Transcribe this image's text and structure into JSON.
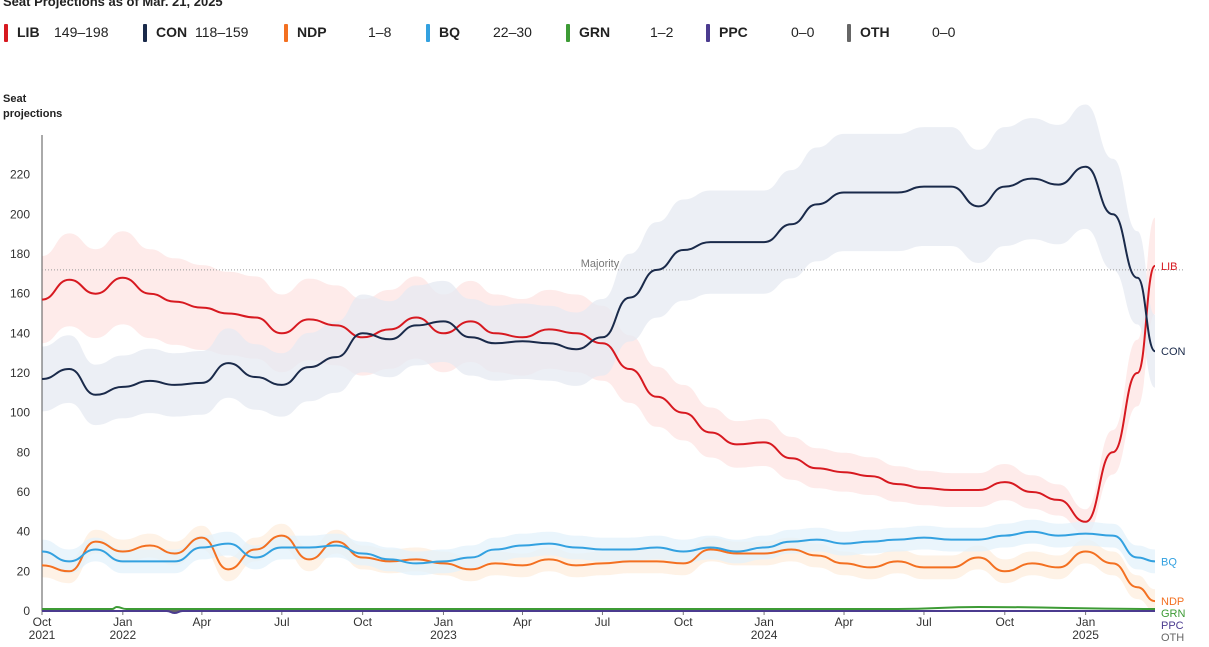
{
  "title": "Seat Projections as of Mar. 21, 2025",
  "legend": [
    {
      "code": "LIB",
      "range": "149–198",
      "color": "#d71920"
    },
    {
      "code": "CON",
      "range": "118–159",
      "color": "#1a2a4a"
    },
    {
      "code": "NDP",
      "range": "1–8",
      "color": "#f37021"
    },
    {
      "code": "BQ",
      "range": "22–30",
      "color": "#33a1e0"
    },
    {
      "code": "GRN",
      "range": "1–2",
      "color": "#3d9b35"
    },
    {
      "code": "PPC",
      "range": "0–0",
      "color": "#4b3b8f"
    },
    {
      "code": "OTH",
      "range": "0–0",
      "color": "#666666"
    }
  ],
  "chart_data": {
    "type": "line",
    "ylabel": "Seat projections",
    "ylim": [
      0,
      240
    ],
    "yticks": [
      0,
      20,
      40,
      60,
      80,
      100,
      120,
      140,
      160,
      180,
      200,
      220
    ],
    "xlim": [
      "2021-10-01",
      "2025-03-21"
    ],
    "xticks": [
      {
        "date": "2021-10-01",
        "label": "Oct",
        "year": "2021"
      },
      {
        "date": "2022-01-01",
        "label": "Jan",
        "year": "2022"
      },
      {
        "date": "2022-04-01",
        "label": "Apr",
        "year": ""
      },
      {
        "date": "2022-07-01",
        "label": "Jul",
        "year": ""
      },
      {
        "date": "2022-10-01",
        "label": "Oct",
        "year": ""
      },
      {
        "date": "2023-01-01",
        "label": "Jan",
        "year": "2023"
      },
      {
        "date": "2023-04-01",
        "label": "Apr",
        "year": ""
      },
      {
        "date": "2023-07-01",
        "label": "Jul",
        "year": ""
      },
      {
        "date": "2023-10-01",
        "label": "Oct",
        "year": ""
      },
      {
        "date": "2024-01-01",
        "label": "Jan",
        "year": "2024"
      },
      {
        "date": "2024-04-01",
        "label": "Apr",
        "year": ""
      },
      {
        "date": "2024-07-01",
        "label": "Jul",
        "year": ""
      },
      {
        "date": "2024-10-01",
        "label": "Oct",
        "year": ""
      },
      {
        "date": "2025-01-01",
        "label": "Jan",
        "year": "2025"
      }
    ],
    "majority": {
      "label": "Majority",
      "value": 172
    },
    "series": [
      {
        "name": "LIB",
        "color": "#d71920",
        "band_color": "#fde4e3",
        "x": [
          "2021-10-01",
          "2021-11-01",
          "2021-12-01",
          "2022-01-01",
          "2022-02-01",
          "2022-03-01",
          "2022-04-01",
          "2022-05-01",
          "2022-06-01",
          "2022-07-01",
          "2022-08-01",
          "2022-09-01",
          "2022-10-01",
          "2022-11-01",
          "2022-12-01",
          "2023-01-01",
          "2023-02-01",
          "2023-03-01",
          "2023-04-01",
          "2023-05-01",
          "2023-06-01",
          "2023-07-01",
          "2023-08-01",
          "2023-09-01",
          "2023-10-01",
          "2023-11-01",
          "2023-12-01",
          "2024-01-01",
          "2024-02-01",
          "2024-03-01",
          "2024-04-01",
          "2024-05-01",
          "2024-06-01",
          "2024-07-01",
          "2024-08-01",
          "2024-09-01",
          "2024-10-01",
          "2024-11-01",
          "2024-12-01",
          "2025-01-01",
          "2025-02-01",
          "2025-03-01",
          "2025-03-21"
        ],
        "values": [
          157,
          167,
          160,
          168,
          160,
          156,
          153,
          150,
          148,
          140,
          147,
          144,
          138,
          142,
          148,
          140,
          146,
          140,
          138,
          142,
          140,
          135,
          122,
          108,
          100,
          90,
          84,
          85,
          77,
          72,
          70,
          68,
          64,
          62,
          61,
          61,
          65,
          60,
          56,
          45,
          80,
          120,
          174
        ]
      },
      {
        "name": "CON",
        "color": "#1a2a4a",
        "band_color": "#e6eaf2",
        "x": [
          "2021-10-01",
          "2021-11-01",
          "2021-12-01",
          "2022-01-01",
          "2022-02-01",
          "2022-03-01",
          "2022-04-01",
          "2022-05-01",
          "2022-06-01",
          "2022-07-01",
          "2022-08-01",
          "2022-09-01",
          "2022-10-01",
          "2022-11-01",
          "2022-12-01",
          "2023-01-01",
          "2023-02-01",
          "2023-03-01",
          "2023-04-01",
          "2023-05-01",
          "2023-06-01",
          "2023-07-01",
          "2023-08-01",
          "2023-09-01",
          "2023-10-01",
          "2023-11-01",
          "2023-12-01",
          "2024-01-01",
          "2024-02-01",
          "2024-03-01",
          "2024-04-01",
          "2024-05-01",
          "2024-06-01",
          "2024-07-01",
          "2024-08-01",
          "2024-09-01",
          "2024-10-01",
          "2024-11-01",
          "2024-12-01",
          "2025-01-01",
          "2025-02-01",
          "2025-03-01",
          "2025-03-21"
        ],
        "values": [
          117,
          122,
          109,
          113,
          116,
          114,
          115,
          125,
          118,
          114,
          123,
          128,
          140,
          137,
          144,
          146,
          138,
          135,
          136,
          135,
          132,
          138,
          158,
          172,
          182,
          186,
          186,
          186,
          195,
          205,
          211,
          211,
          211,
          214,
          214,
          204,
          214,
          218,
          215,
          224,
          200,
          168,
          131
        ]
      },
      {
        "name": "NDP",
        "color": "#f37021",
        "band_color": "#fdeedd",
        "x": [
          "2021-10-01",
          "2021-11-01",
          "2021-12-01",
          "2022-01-01",
          "2022-02-01",
          "2022-03-01",
          "2022-04-01",
          "2022-05-01",
          "2022-06-01",
          "2022-07-01",
          "2022-08-01",
          "2022-09-01",
          "2022-10-01",
          "2022-11-01",
          "2022-12-01",
          "2023-01-01",
          "2023-02-01",
          "2023-03-01",
          "2023-04-01",
          "2023-05-01",
          "2023-06-01",
          "2023-07-01",
          "2023-08-01",
          "2023-09-01",
          "2023-10-01",
          "2023-11-01",
          "2023-12-01",
          "2024-01-01",
          "2024-02-01",
          "2024-03-01",
          "2024-04-01",
          "2024-05-01",
          "2024-06-01",
          "2024-07-01",
          "2024-08-01",
          "2024-09-01",
          "2024-10-01",
          "2024-11-01",
          "2024-12-01",
          "2025-01-01",
          "2025-02-01",
          "2025-03-01",
          "2025-03-21"
        ],
        "values": [
          23,
          20,
          35,
          30,
          33,
          29,
          37,
          21,
          31,
          38,
          26,
          35,
          27,
          25,
          26,
          24,
          21,
          24,
          23,
          26,
          23,
          24,
          25,
          25,
          24,
          31,
          29,
          29,
          31,
          28,
          24,
          22,
          25,
          22,
          22,
          27,
          20,
          24,
          22,
          30,
          24,
          12,
          5
        ]
      },
      {
        "name": "BQ",
        "color": "#33a1e0",
        "band_color": "#e3f1fb",
        "x": [
          "2021-10-01",
          "2021-11-01",
          "2021-12-01",
          "2022-01-01",
          "2022-02-01",
          "2022-03-01",
          "2022-04-01",
          "2022-05-01",
          "2022-06-01",
          "2022-07-01",
          "2022-08-01",
          "2022-09-01",
          "2022-10-01",
          "2022-11-01",
          "2022-12-01",
          "2023-01-01",
          "2023-02-01",
          "2023-03-01",
          "2023-04-01",
          "2023-05-01",
          "2023-06-01",
          "2023-07-01",
          "2023-08-01",
          "2023-09-01",
          "2023-10-01",
          "2023-11-01",
          "2023-12-01",
          "2024-01-01",
          "2024-02-01",
          "2024-03-01",
          "2024-04-01",
          "2024-05-01",
          "2024-06-01",
          "2024-07-01",
          "2024-08-01",
          "2024-09-01",
          "2024-10-01",
          "2024-11-01",
          "2024-12-01",
          "2025-01-01",
          "2025-02-01",
          "2025-03-01",
          "2025-03-21"
        ],
        "values": [
          30,
          25,
          31,
          25,
          25,
          25,
          32,
          34,
          27,
          32,
          32,
          33,
          29,
          26,
          24,
          25,
          27,
          31,
          33,
          34,
          32,
          31,
          31,
          32,
          30,
          32,
          30,
          32,
          35,
          36,
          34,
          35,
          36,
          37,
          36,
          36,
          38,
          40,
          38,
          39,
          38,
          27,
          25
        ]
      },
      {
        "name": "GRN",
        "color": "#3d9b35",
        "x": [
          "2021-10-01",
          "2021-12-20",
          "2021-12-25",
          "2022-01-05",
          "2024-06-01",
          "2024-09-01",
          "2025-03-21"
        ],
        "values": [
          1,
          1,
          2,
          1,
          1,
          2,
          1
        ]
      },
      {
        "name": "PPC",
        "color": "#4b3b8f",
        "x": [
          "2021-10-01",
          "2022-02-20",
          "2022-03-01",
          "2022-03-10",
          "2025-03-21"
        ],
        "values": [
          0,
          0,
          -1,
          0,
          0
        ]
      },
      {
        "name": "OTH",
        "color": "#666666",
        "x": [
          "2021-10-01",
          "2025-03-21"
        ],
        "values": [
          0,
          0
        ]
      }
    ]
  }
}
